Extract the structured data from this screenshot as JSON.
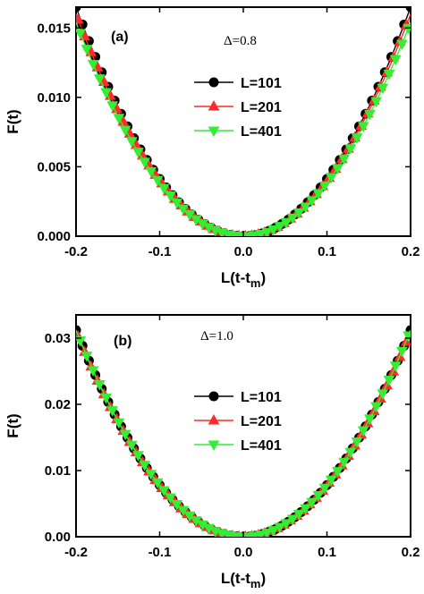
{
  "chart_data": [
    {
      "type": "line",
      "panel_label": "(a)",
      "annotation": "Δ=0.8",
      "xlabel": "L(t-t",
      "xlabel_sub": "m",
      "xlabel_close": ")",
      "ylabel": "F(t)",
      "xlim": [
        -0.2,
        0.2
      ],
      "ylim": [
        0,
        0.0165
      ],
      "xticks": [
        "-0.2",
        "-0.1",
        "0.0",
        "0.1",
        "0.2"
      ],
      "xtick_values": [
        -0.2,
        -0.1,
        0.0,
        0.1,
        0.2
      ],
      "yticks": [
        "0.000",
        "0.005",
        "0.010",
        "0.015"
      ],
      "ytick_values": [
        0,
        0.005,
        0.01,
        0.015
      ],
      "legend_position": "center",
      "series": [
        {
          "name": "L=101",
          "color": "#000000",
          "marker": "circle",
          "coefficient": 0.4125,
          "x_range": [
            -0.2,
            0.2
          ]
        },
        {
          "name": "L=201",
          "color": "#ff2a2a",
          "marker": "triangle-up",
          "coefficient": 0.4,
          "x_range": [
            -0.2,
            0.2
          ]
        },
        {
          "name": "L=401",
          "color": "#33ee33",
          "marker": "triangle-down",
          "coefficient": 0.385,
          "x_range": [
            -0.2,
            0.2
          ]
        }
      ]
    },
    {
      "type": "line",
      "panel_label": "(b)",
      "annotation": "Δ=1.0",
      "xlabel": "L(t-t",
      "xlabel_sub": "m",
      "xlabel_close": ")",
      "ylabel": "F(t)",
      "xlim": [
        -0.2,
        0.2
      ],
      "ylim": [
        0,
        0.0335
      ],
      "xticks": [
        "-0.2",
        "-0.1",
        "0.0",
        "0.1",
        "0.2"
      ],
      "xtick_values": [
        -0.2,
        -0.1,
        0.0,
        0.1,
        0.2
      ],
      "yticks": [
        "0.00",
        "0.01",
        "0.02",
        "0.03"
      ],
      "ytick_values": [
        0,
        0.01,
        0.02,
        0.03
      ],
      "legend_position": "center",
      "series": [
        {
          "name": "L=101",
          "color": "#000000",
          "marker": "circle",
          "coefficient": 0.78,
          "x_range": [
            -0.2,
            0.2
          ]
        },
        {
          "name": "L=201",
          "color": "#ff2a2a",
          "marker": "triangle-up",
          "coefficient": 0.775,
          "x_range": [
            -0.2,
            0.2
          ]
        },
        {
          "name": "L=401",
          "color": "#33ee33",
          "marker": "triangle-down",
          "coefficient": 0.78,
          "x_range": [
            -0.2,
            0.2
          ]
        }
      ]
    }
  ]
}
